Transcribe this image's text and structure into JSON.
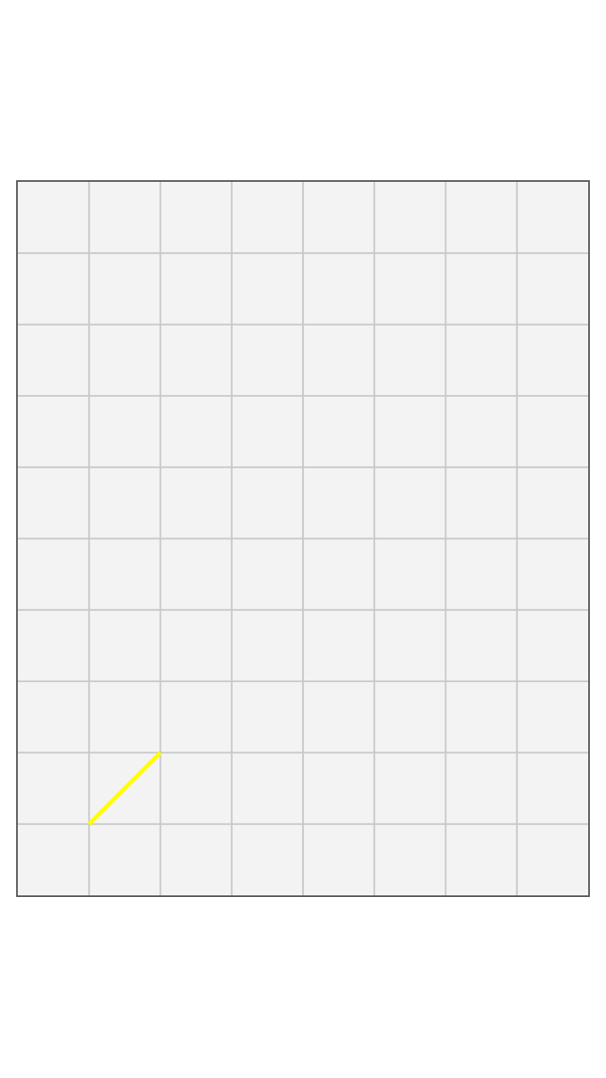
{
  "board": {
    "columns": 8,
    "rows": 10,
    "colors": {
      "background": "#f3f3f3",
      "grid_line": "#c8c8c8",
      "border": "#555555"
    }
  },
  "segments": [
    {
      "from": {
        "col": 1,
        "row": 9
      },
      "to": {
        "col": 2,
        "row": 8
      },
      "color": "#ffff00"
    }
  ]
}
